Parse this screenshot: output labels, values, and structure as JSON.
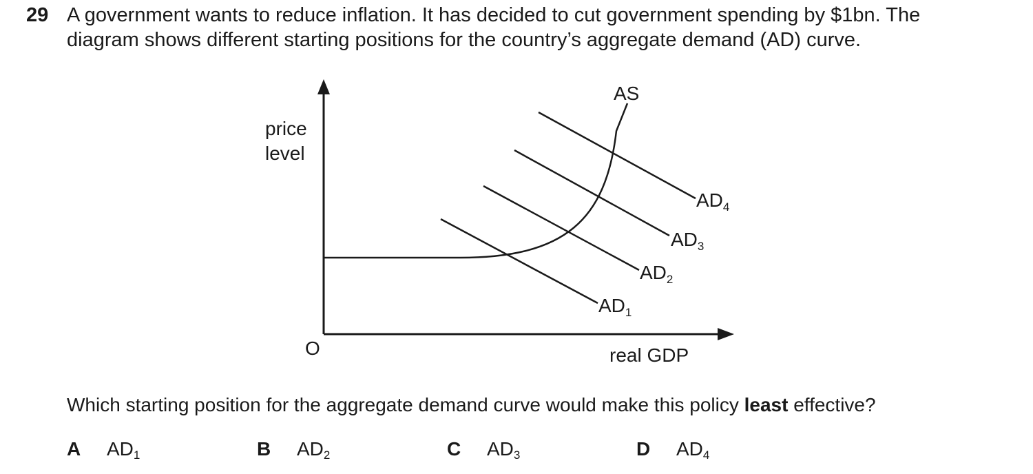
{
  "question": {
    "number": "29",
    "line1": "A government wants to reduce inflation. It has decided to cut government spending by $1bn. The",
    "line2": "diagram shows different starting positions for the country’s aggregate demand (AD) curve."
  },
  "diagram": {
    "y_axis_label_line1": "price",
    "y_axis_label_line2": "level",
    "x_axis_label": "real GDP",
    "origin_label": "O",
    "as_label": "AS",
    "ad_curves": [
      {
        "base": "AD",
        "sub": "1"
      },
      {
        "base": "AD",
        "sub": "2"
      },
      {
        "base": "AD",
        "sub": "3"
      },
      {
        "base": "AD",
        "sub": "4"
      }
    ]
  },
  "prompt": {
    "before": "Which starting position for the aggregate demand curve would make this policy ",
    "bold": "least",
    "after": " effective?"
  },
  "options": [
    {
      "key": "A",
      "base": "AD",
      "sub": "1"
    },
    {
      "key": "B",
      "base": "AD",
      "sub": "2"
    },
    {
      "key": "C",
      "base": "AD",
      "sub": "3"
    },
    {
      "key": "D",
      "base": "AD",
      "sub": "4"
    }
  ]
}
